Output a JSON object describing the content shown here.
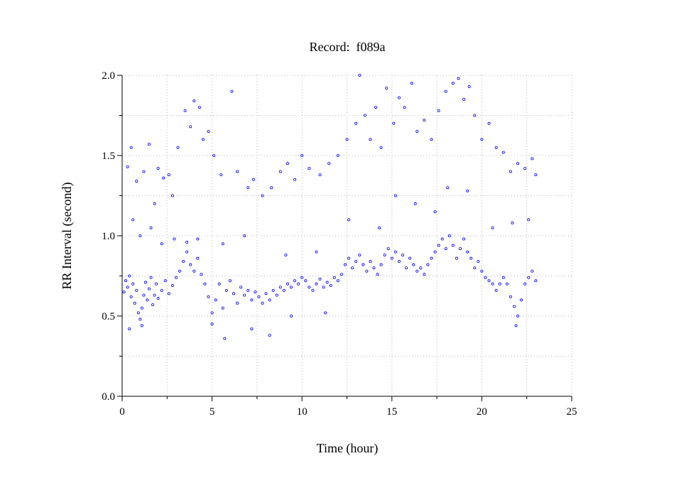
{
  "chart_data": {
    "type": "scatter",
    "title": "Record:  f089a",
    "xlabel": "Time (hour)",
    "ylabel": "RR Interval (second)",
    "xlim": [
      0,
      25
    ],
    "ylim": [
      0,
      2.0
    ],
    "x_ticks": [
      0,
      5,
      10,
      15,
      20,
      25
    ],
    "x_tick_labels": [
      "0",
      "5",
      "10",
      "15",
      "20",
      "25"
    ],
    "y_ticks": [
      0,
      0.5,
      1.0,
      1.5,
      2.0
    ],
    "y_tick_labels": [
      "0.0",
      "0.5",
      "1.0",
      "1.5",
      "2.0"
    ],
    "grid": true,
    "marker_color": "#0000ff",
    "series": [
      {
        "points": [
          [
            0.1,
            0.65
          ],
          [
            0.2,
            0.72
          ],
          [
            0.3,
            0.68
          ],
          [
            0.4,
            0.75
          ],
          [
            0.5,
            0.62
          ],
          [
            0.6,
            0.7
          ],
          [
            0.7,
            0.58
          ],
          [
            0.8,
            0.66
          ],
          [
            0.9,
            0.52
          ],
          [
            1.0,
            0.48
          ],
          [
            1.1,
            0.55
          ],
          [
            1.2,
            0.63
          ],
          [
            1.3,
            0.71
          ],
          [
            1.4,
            0.6
          ],
          [
            1.5,
            0.67
          ],
          [
            1.6,
            0.74
          ],
          [
            1.7,
            0.57
          ],
          [
            1.8,
            0.63
          ],
          [
            1.9,
            0.7
          ],
          [
            2.0,
            0.61
          ],
          [
            2.2,
            0.66
          ],
          [
            2.4,
            0.72
          ],
          [
            2.6,
            0.64
          ],
          [
            2.8,
            0.69
          ],
          [
            3.0,
            0.74
          ],
          [
            3.2,
            0.78
          ],
          [
            3.4,
            0.84
          ],
          [
            3.6,
            0.9
          ],
          [
            3.8,
            0.82
          ],
          [
            4.0,
            0.78
          ],
          [
            4.2,
            0.86
          ],
          [
            4.4,
            0.76
          ],
          [
            4.6,
            0.7
          ],
          [
            4.8,
            0.62
          ],
          [
            5.0,
            0.52
          ],
          [
            5.2,
            0.6
          ],
          [
            5.4,
            0.7
          ],
          [
            5.6,
            0.55
          ],
          [
            5.8,
            0.66
          ],
          [
            6.0,
            0.72
          ],
          [
            6.2,
            0.64
          ],
          [
            6.4,
            0.58
          ],
          [
            6.6,
            0.68
          ],
          [
            6.8,
            0.63
          ],
          [
            7.0,
            0.66
          ],
          [
            7.2,
            0.6
          ],
          [
            7.4,
            0.65
          ],
          [
            7.6,
            0.62
          ],
          [
            7.8,
            0.58
          ],
          [
            8.0,
            0.64
          ],
          [
            8.2,
            0.6
          ],
          [
            8.4,
            0.66
          ],
          [
            8.6,
            0.63
          ],
          [
            8.8,
            0.68
          ],
          [
            9.0,
            0.66
          ],
          [
            9.2,
            0.7
          ],
          [
            9.4,
            0.68
          ],
          [
            9.6,
            0.72
          ],
          [
            9.8,
            0.7
          ],
          [
            10.0,
            0.74
          ],
          [
            10.2,
            0.72
          ],
          [
            10.4,
            0.68
          ],
          [
            10.6,
            0.66
          ],
          [
            10.8,
            0.7
          ],
          [
            11.0,
            0.73
          ],
          [
            11.2,
            0.68
          ],
          [
            11.4,
            0.71
          ],
          [
            11.6,
            0.69
          ],
          [
            11.8,
            0.74
          ],
          [
            12.0,
            0.72
          ],
          [
            12.2,
            0.76
          ],
          [
            12.4,
            0.82
          ],
          [
            12.6,
            0.86
          ],
          [
            12.8,
            0.8
          ],
          [
            13.0,
            0.84
          ],
          [
            13.2,
            0.88
          ],
          [
            13.4,
            0.82
          ],
          [
            13.6,
            0.78
          ],
          [
            13.8,
            0.84
          ],
          [
            14.0,
            0.8
          ],
          [
            14.2,
            0.76
          ],
          [
            14.4,
            0.82
          ],
          [
            14.6,
            0.88
          ],
          [
            14.8,
            0.92
          ],
          [
            15.0,
            0.86
          ],
          [
            15.2,
            0.9
          ],
          [
            15.4,
            0.84
          ],
          [
            15.6,
            0.88
          ],
          [
            15.8,
            0.8
          ],
          [
            16.0,
            0.86
          ],
          [
            16.2,
            0.82
          ],
          [
            16.4,
            0.78
          ],
          [
            16.6,
            0.8
          ],
          [
            16.8,
            0.76
          ],
          [
            17.0,
            0.82
          ],
          [
            17.2,
            0.86
          ],
          [
            17.4,
            0.9
          ],
          [
            17.6,
            0.94
          ],
          [
            17.8,
            0.98
          ],
          [
            18.0,
            0.92
          ],
          [
            18.2,
            1.0
          ],
          [
            18.4,
            0.94
          ],
          [
            18.6,
            0.86
          ],
          [
            18.8,
            0.92
          ],
          [
            19.0,
            0.98
          ],
          [
            19.2,
            0.9
          ],
          [
            19.4,
            0.86
          ],
          [
            19.6,
            0.8
          ],
          [
            19.8,
            0.84
          ],
          [
            20.0,
            0.78
          ],
          [
            20.2,
            0.74
          ],
          [
            20.4,
            0.72
          ],
          [
            20.6,
            0.7
          ],
          [
            20.8,
            0.66
          ],
          [
            21.0,
            0.7
          ],
          [
            21.2,
            0.74
          ],
          [
            21.4,
            0.7
          ],
          [
            21.6,
            0.62
          ],
          [
            21.8,
            0.56
          ],
          [
            22.0,
            0.5
          ],
          [
            22.2,
            0.6
          ],
          [
            22.4,
            0.7
          ],
          [
            22.6,
            0.74
          ],
          [
            22.8,
            0.78
          ],
          [
            23.0,
            0.72
          ],
          [
            0.3,
            1.43
          ],
          [
            0.5,
            1.55
          ],
          [
            0.8,
            1.34
          ],
          [
            1.2,
            1.4
          ],
          [
            1.5,
            1.57
          ],
          [
            1.8,
            1.2
          ],
          [
            2.0,
            1.42
          ],
          [
            2.3,
            1.36
          ],
          [
            2.6,
            1.38
          ],
          [
            2.8,
            1.25
          ],
          [
            3.1,
            1.55
          ],
          [
            3.5,
            1.78
          ],
          [
            3.8,
            1.68
          ],
          [
            4.0,
            1.84
          ],
          [
            4.3,
            1.8
          ],
          [
            4.5,
            1.6
          ],
          [
            4.8,
            1.65
          ],
          [
            5.1,
            1.5
          ],
          [
            5.5,
            1.38
          ],
          [
            6.1,
            1.9
          ],
          [
            6.4,
            1.4
          ],
          [
            7.0,
            1.3
          ],
          [
            7.3,
            1.35
          ],
          [
            7.8,
            1.25
          ],
          [
            8.3,
            1.3
          ],
          [
            8.8,
            1.4
          ],
          [
            9.2,
            1.45
          ],
          [
            9.6,
            1.35
          ],
          [
            10.0,
            1.5
          ],
          [
            10.4,
            1.42
          ],
          [
            11.0,
            1.38
          ],
          [
            11.5,
            1.45
          ],
          [
            12.0,
            1.5
          ],
          [
            12.5,
            1.6
          ],
          [
            13.0,
            1.7
          ],
          [
            13.2,
            2.0
          ],
          [
            13.5,
            1.75
          ],
          [
            13.8,
            1.6
          ],
          [
            14.1,
            1.8
          ],
          [
            14.4,
            1.55
          ],
          [
            14.7,
            1.92
          ],
          [
            15.1,
            1.7
          ],
          [
            15.4,
            1.86
          ],
          [
            15.7,
            1.8
          ],
          [
            16.1,
            1.95
          ],
          [
            16.4,
            1.65
          ],
          [
            16.8,
            1.72
          ],
          [
            17.2,
            1.6
          ],
          [
            17.6,
            1.78
          ],
          [
            18.0,
            1.9
          ],
          [
            18.4,
            1.95
          ],
          [
            18.7,
            1.98
          ],
          [
            19.0,
            1.85
          ],
          [
            19.3,
            1.93
          ],
          [
            19.6,
            1.75
          ],
          [
            20.0,
            1.6
          ],
          [
            20.4,
            1.7
          ],
          [
            20.8,
            1.55
          ],
          [
            21.2,
            1.52
          ],
          [
            21.6,
            1.4
          ],
          [
            22.0,
            1.45
          ],
          [
            22.4,
            1.42
          ],
          [
            22.8,
            1.48
          ],
          [
            23.0,
            1.38
          ],
          [
            0.6,
            1.1
          ],
          [
            1.0,
            1.0
          ],
          [
            1.6,
            1.05
          ],
          [
            2.2,
            0.95
          ],
          [
            2.9,
            0.98
          ],
          [
            3.6,
            0.96
          ],
          [
            4.2,
            0.98
          ],
          [
            5.6,
            0.95
          ],
          [
            6.8,
            1.0
          ],
          [
            9.1,
            0.88
          ],
          [
            10.8,
            0.9
          ],
          [
            12.6,
            1.1
          ],
          [
            14.3,
            1.05
          ],
          [
            15.2,
            1.25
          ],
          [
            16.3,
            1.2
          ],
          [
            17.4,
            1.15
          ],
          [
            18.1,
            1.3
          ],
          [
            19.2,
            1.28
          ],
          [
            20.6,
            1.05
          ],
          [
            21.7,
            1.08
          ],
          [
            22.6,
            1.1
          ],
          [
            0.4,
            0.42
          ],
          [
            1.1,
            0.44
          ],
          [
            5.0,
            0.45
          ],
          [
            5.7,
            0.36
          ],
          [
            7.2,
            0.42
          ],
          [
            8.2,
            0.38
          ],
          [
            9.4,
            0.5
          ],
          [
            11.3,
            0.52
          ],
          [
            21.9,
            0.44
          ]
        ]
      }
    ]
  }
}
